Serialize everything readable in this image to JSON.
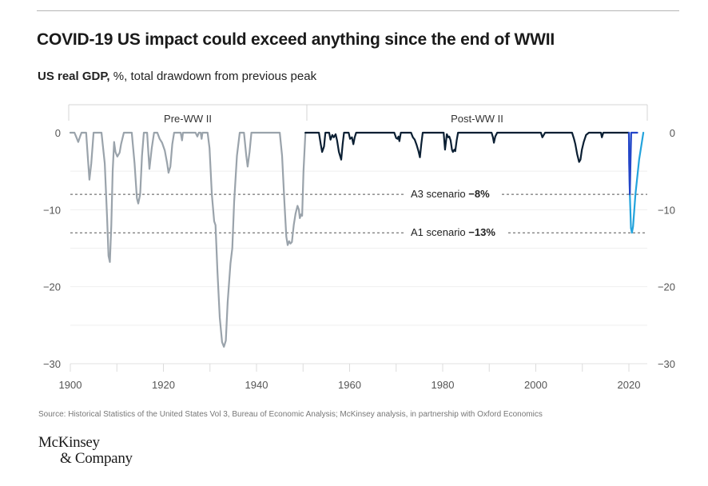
{
  "header": {
    "title": "COVID-19 US impact could exceed anything since the end of WWII",
    "subtitle_bold": "US real GDP,",
    "subtitle_rest": " %, total drawdown from previous peak"
  },
  "footer": {
    "source": "Source: Historical Statistics of the United States Vol 3, Bureau of Economic Analysis; McKinsey analysis, in partnership with Oxford Economics",
    "logo_line1": "McKinsey",
    "logo_line2": "& Company"
  },
  "colors": {
    "pre_ww2": "#9aa3ab",
    "post_ww2": "#0b1f33",
    "a3": "#2445c8",
    "a1": "#23a3dc",
    "grid": "#efefef",
    "axis_text": "#555555",
    "dotted": "#555555"
  },
  "chart_data": {
    "type": "line",
    "title": "COVID-19 US impact could exceed anything since the end of WWII",
    "ylabel": "US real GDP, %, total drawdown from previous peak",
    "xlabel": "",
    "xlim": [
      1900,
      2023.5
    ],
    "ylim": [
      -30,
      0
    ],
    "x_ticks": [
      1900,
      1920,
      1940,
      1960,
      1980,
      2000,
      2020
    ],
    "x_tick_labels": [
      "1900",
      "1920",
      "1940",
      "1960",
      "1980",
      "2000",
      "2020"
    ],
    "x_minor_ticks_every": 10,
    "y_ticks": [
      0,
      -10,
      -20,
      -30
    ],
    "y_tick_labels": [
      "0",
      "−10",
      "−20",
      "−30"
    ],
    "grid_every": 5,
    "grid": true,
    "periods": [
      {
        "label": "Pre-WW II",
        "from": 1900,
        "to": 1950.5
      },
      {
        "label": "Post-WW II",
        "from": 1950.5,
        "to": 2023.5
      }
    ],
    "reference_lines": [
      {
        "name": "A3 scenario",
        "value": -8,
        "label": "A3 scenario",
        "value_label": "−8%"
      },
      {
        "name": "A1 scenario",
        "value": -13,
        "label": "A1 scenario",
        "value_label": "−13%"
      }
    ],
    "series": [
      {
        "name": "Pre-WW II",
        "color_key": "pre_ww2",
        "points": [
          [
            1900,
            0
          ],
          [
            1900.9,
            0
          ],
          [
            1901.3,
            -0.6
          ],
          [
            1901.7,
            -1.2
          ],
          [
            1902.1,
            -0.5
          ],
          [
            1902.4,
            0
          ],
          [
            1903.4,
            0
          ],
          [
            1903.8,
            -3.5
          ],
          [
            1904.1,
            -6.1
          ],
          [
            1904.5,
            -4
          ],
          [
            1905,
            0
          ],
          [
            1906.7,
            0
          ],
          [
            1907.4,
            -4
          ],
          [
            1907.9,
            -11
          ],
          [
            1908.2,
            -16
          ],
          [
            1908.5,
            -16.8
          ],
          [
            1908.8,
            -12
          ],
          [
            1909.1,
            -5
          ],
          [
            1909.4,
            -1.2
          ],
          [
            1909.7,
            -2.5
          ],
          [
            1910.1,
            -3.1
          ],
          [
            1910.6,
            -2.6
          ],
          [
            1910.9,
            -1.5
          ],
          [
            1911.5,
            0
          ],
          [
            1913.2,
            0
          ],
          [
            1913.8,
            -4
          ],
          [
            1914.3,
            -8.5
          ],
          [
            1914.6,
            -9.2
          ],
          [
            1915,
            -8
          ],
          [
            1915.4,
            -3
          ],
          [
            1915.8,
            0
          ],
          [
            1916.5,
            0
          ],
          [
            1916.8,
            -3
          ],
          [
            1917,
            -4.7
          ],
          [
            1917.5,
            -2
          ],
          [
            1918,
            0
          ],
          [
            1918.7,
            0
          ],
          [
            1919.2,
            -0.8
          ],
          [
            1919.7,
            -1.3
          ],
          [
            1920.3,
            -2.3
          ],
          [
            1920.8,
            -4
          ],
          [
            1921.1,
            -5.2
          ],
          [
            1921.5,
            -4.4
          ],
          [
            1921.9,
            -1.5
          ],
          [
            1922.3,
            0
          ],
          [
            1923.7,
            0
          ],
          [
            1924,
            -1
          ],
          [
            1924.2,
            0
          ],
          [
            1926.9,
            0
          ],
          [
            1927.3,
            -0.5
          ],
          [
            1927.6,
            0
          ],
          [
            1928,
            0
          ],
          [
            1928.2,
            -0.8
          ],
          [
            1928.4,
            0
          ],
          [
            1929.5,
            0
          ],
          [
            1929.9,
            -2
          ],
          [
            1930.4,
            -8
          ],
          [
            1930.9,
            -11.5
          ],
          [
            1931.2,
            -12
          ],
          [
            1931.6,
            -18
          ],
          [
            1932.1,
            -24
          ],
          [
            1932.6,
            -27.2
          ],
          [
            1933,
            -27.8
          ],
          [
            1933.4,
            -27
          ],
          [
            1933.8,
            -22
          ],
          [
            1934.4,
            -17
          ],
          [
            1934.8,
            -15
          ],
          [
            1935.2,
            -9
          ],
          [
            1935.8,
            -3
          ],
          [
            1936.4,
            0
          ],
          [
            1937.3,
            0
          ],
          [
            1937.8,
            -3
          ],
          [
            1938.1,
            -4.4
          ],
          [
            1938.5,
            -2.5
          ],
          [
            1938.9,
            0
          ],
          [
            1945,
            0
          ],
          [
            1945.5,
            -3
          ],
          [
            1946,
            -9
          ],
          [
            1946.4,
            -13.5
          ],
          [
            1946.7,
            -14.6
          ],
          [
            1947,
            -14.1
          ],
          [
            1947.3,
            -14.4
          ],
          [
            1947.6,
            -14.2
          ],
          [
            1948,
            -12
          ],
          [
            1948.4,
            -10.5
          ],
          [
            1948.8,
            -9.5
          ],
          [
            1949.1,
            -10
          ],
          [
            1949.3,
            -11.1
          ],
          [
            1949.6,
            -10.6
          ],
          [
            1949.8,
            -10.8
          ],
          [
            1950.1,
            -5
          ],
          [
            1950.5,
            0
          ]
        ]
      },
      {
        "name": "Post-WW II",
        "color_key": "post_ww2",
        "points": [
          [
            1950.5,
            0
          ],
          [
            1953.4,
            0
          ],
          [
            1953.8,
            -1.5
          ],
          [
            1954.1,
            -2.5
          ],
          [
            1954.5,
            -1.8
          ],
          [
            1954.8,
            0
          ],
          [
            1955.6,
            0
          ],
          [
            1955.9,
            -0.9
          ],
          [
            1956.3,
            -0.3
          ],
          [
            1956.6,
            -0.6
          ],
          [
            1957,
            -0.2
          ],
          [
            1957.3,
            -1
          ],
          [
            1957.7,
            -2.5
          ],
          [
            1958.2,
            -3.5
          ],
          [
            1958.5,
            -1.5
          ],
          [
            1958.8,
            0
          ],
          [
            1959.8,
            0
          ],
          [
            1960.1,
            -0.8
          ],
          [
            1960.5,
            -0.6
          ],
          [
            1960.8,
            -1.5
          ],
          [
            1961.1,
            -0.6
          ],
          [
            1961.4,
            0
          ],
          [
            1969.6,
            0
          ],
          [
            1970,
            -0.7
          ],
          [
            1970.3,
            -0.8
          ],
          [
            1970.5,
            -0.5
          ],
          [
            1970.7,
            -1.1
          ],
          [
            1971,
            0
          ],
          [
            1973.2,
            0
          ],
          [
            1973.6,
            -0.6
          ],
          [
            1974,
            -0.9
          ],
          [
            1974.4,
            -1.6
          ],
          [
            1974.8,
            -2.4
          ],
          [
            1975.1,
            -3.2
          ],
          [
            1975.4,
            -1.5
          ],
          [
            1975.7,
            0
          ],
          [
            1980.2,
            0
          ],
          [
            1980.5,
            -2.2
          ],
          [
            1980.9,
            -0.2
          ],
          [
            1981.2,
            -0.6
          ],
          [
            1981.4,
            -0.5
          ],
          [
            1981.7,
            -1
          ],
          [
            1982,
            -2.2
          ],
          [
            1982.2,
            -2.5
          ],
          [
            1982.5,
            -2.2
          ],
          [
            1982.7,
            -2.4
          ],
          [
            1983,
            -1
          ],
          [
            1983.3,
            0
          ],
          [
            1990.5,
            0
          ],
          [
            1990.8,
            -0.6
          ],
          [
            1991,
            -1.3
          ],
          [
            1991.3,
            -0.5
          ],
          [
            1991.7,
            0
          ],
          [
            2001.1,
            0
          ],
          [
            2001.4,
            -0.6
          ],
          [
            2001.6,
            -0.4
          ],
          [
            2002,
            0
          ],
          [
            2007.8,
            0
          ],
          [
            2008.2,
            -0.8
          ],
          [
            2008.5,
            -1.5
          ],
          [
            2008.9,
            -2.8
          ],
          [
            2009.3,
            -3.8
          ],
          [
            2009.6,
            -3.5
          ],
          [
            2009.9,
            -2.2
          ],
          [
            2010.3,
            -1.2
          ],
          [
            2010.8,
            -0.3
          ],
          [
            2011.4,
            0
          ],
          [
            2014,
            0
          ],
          [
            2014.2,
            -0.6
          ],
          [
            2014.5,
            0
          ],
          [
            2020,
            0
          ]
        ]
      },
      {
        "name": "A3 scenario",
        "color_key": "a3",
        "points": [
          [
            2020,
            0
          ],
          [
            2020.05,
            -4
          ],
          [
            2020.2,
            -8
          ],
          [
            2020.35,
            -4
          ],
          [
            2020.5,
            0
          ],
          [
            2021.8,
            0
          ]
        ]
      },
      {
        "name": "A1 scenario",
        "color_key": "a1",
        "points": [
          [
            2020,
            0
          ],
          [
            2020.2,
            -8
          ],
          [
            2020.45,
            -12.4
          ],
          [
            2020.65,
            -13
          ],
          [
            2020.9,
            -12.2
          ],
          [
            2021.4,
            -8
          ],
          [
            2022.2,
            -3.5
          ],
          [
            2023.1,
            0
          ]
        ]
      }
    ]
  }
}
